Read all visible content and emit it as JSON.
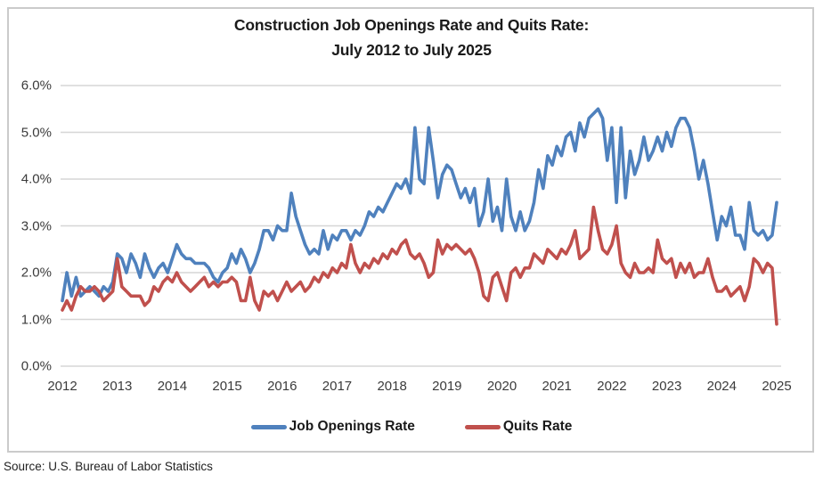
{
  "title_line1": "Construction Job Openings Rate and Quits Rate:",
  "title_line2": "July 2012 to July 2025",
  "source": "Source: U.S. Bureau of Labor Statistics",
  "legend": {
    "job_openings_label": "Job Openings Rate",
    "quits_label": "Quits Rate"
  },
  "colors": {
    "job_openings": "#4F81BD",
    "quits": "#C0504D",
    "gridline": "#d6d6d6",
    "border": "#cbcbcb"
  },
  "chart_data": {
    "type": "line",
    "title": "Construction Job Openings Rate and Quits Rate: July 2012 to July 2025",
    "x_frequency": "monthly",
    "x_start": "July 2012",
    "x_end": "July 2025",
    "x_tick_labels": [
      "2012",
      "2013",
      "2014",
      "2015",
      "2016",
      "2017",
      "2018",
      "2019",
      "2020",
      "2021",
      "2022",
      "2023",
      "2024",
      "2025"
    ],
    "y_tick_labels": [
      "0.0%",
      "1.0%",
      "2.0%",
      "3.0%",
      "4.0%",
      "5.0%",
      "6.0%"
    ],
    "ylim": [
      0,
      6
    ],
    "y_unit": "percent",
    "grid": "horizontal",
    "legend_position": "bottom",
    "series": [
      {
        "name": "Job Openings Rate",
        "color": "#4F81BD",
        "values": [
          1.4,
          2.0,
          1.5,
          1.9,
          1.5,
          1.6,
          1.7,
          1.6,
          1.5,
          1.7,
          1.6,
          1.8,
          2.4,
          2.3,
          2.0,
          2.4,
          2.2,
          1.9,
          2.4,
          2.1,
          1.9,
          2.1,
          2.2,
          2.0,
          2.3,
          2.6,
          2.4,
          2.3,
          2.3,
          2.2,
          2.2,
          2.2,
          2.1,
          1.9,
          1.8,
          2.0,
          2.1,
          2.4,
          2.2,
          2.5,
          2.3,
          2.0,
          2.2,
          2.5,
          2.9,
          2.9,
          2.7,
          3.0,
          2.9,
          2.9,
          3.7,
          3.2,
          2.9,
          2.6,
          2.4,
          2.5,
          2.4,
          2.9,
          2.5,
          2.8,
          2.7,
          2.9,
          2.9,
          2.7,
          2.9,
          2.8,
          3.0,
          3.3,
          3.2,
          3.4,
          3.3,
          3.5,
          3.7,
          3.9,
          3.8,
          4.0,
          3.7,
          5.1,
          4.0,
          3.9,
          5.1,
          4.4,
          3.6,
          4.1,
          4.3,
          4.2,
          3.9,
          3.6,
          3.8,
          3.5,
          3.8,
          3.0,
          3.3,
          4.0,
          3.1,
          3.4,
          2.9,
          4.0,
          3.2,
          2.9,
          3.3,
          2.9,
          3.1,
          3.5,
          4.2,
          3.8,
          4.5,
          4.3,
          4.7,
          4.5,
          4.9,
          5.0,
          4.6,
          5.2,
          4.9,
          5.3,
          5.4,
          5.5,
          5.3,
          4.4,
          5.1,
          3.5,
          5.1,
          3.6,
          4.6,
          4.1,
          4.4,
          4.9,
          4.4,
          4.6,
          4.9,
          4.6,
          5.0,
          4.7,
          5.1,
          5.3,
          5.3,
          5.1,
          4.6,
          4.0,
          4.4,
          3.9,
          3.3,
          2.7,
          3.2,
          3.0,
          3.4,
          2.8,
          2.8,
          2.5,
          3.5,
          2.9,
          2.8,
          2.9,
          2.7,
          2.8,
          3.5
        ]
      },
      {
        "name": "Quits Rate",
        "color": "#C0504D",
        "values": [
          1.2,
          1.4,
          1.2,
          1.5,
          1.7,
          1.6,
          1.6,
          1.7,
          1.6,
          1.4,
          1.5,
          1.6,
          2.3,
          1.7,
          1.6,
          1.5,
          1.5,
          1.5,
          1.3,
          1.4,
          1.7,
          1.6,
          1.8,
          1.9,
          1.8,
          2.0,
          1.8,
          1.7,
          1.6,
          1.7,
          1.8,
          1.9,
          1.7,
          1.8,
          1.7,
          1.8,
          1.8,
          1.9,
          1.8,
          1.4,
          1.4,
          1.9,
          1.4,
          1.2,
          1.6,
          1.5,
          1.6,
          1.4,
          1.6,
          1.8,
          1.6,
          1.7,
          1.8,
          1.6,
          1.7,
          1.9,
          1.8,
          2.0,
          1.9,
          2.1,
          2.0,
          2.2,
          2.1,
          2.6,
          2.2,
          2.0,
          2.2,
          2.1,
          2.3,
          2.2,
          2.4,
          2.3,
          2.5,
          2.4,
          2.6,
          2.7,
          2.4,
          2.3,
          2.4,
          2.2,
          1.9,
          2.0,
          2.7,
          2.4,
          2.6,
          2.5,
          2.6,
          2.5,
          2.4,
          2.5,
          2.3,
          2.0,
          1.5,
          1.4,
          1.9,
          2.0,
          1.7,
          1.4,
          2.0,
          2.1,
          1.9,
          2.1,
          2.1,
          2.4,
          2.3,
          2.2,
          2.5,
          2.4,
          2.3,
          2.5,
          2.4,
          2.6,
          2.9,
          2.3,
          2.4,
          2.5,
          3.4,
          2.9,
          2.5,
          2.4,
          2.6,
          3.0,
          2.2,
          2.0,
          1.9,
          2.2,
          2.0,
          2.0,
          2.1,
          2.0,
          2.7,
          2.3,
          2.2,
          2.3,
          1.9,
          2.2,
          2.0,
          2.2,
          1.9,
          2.0,
          2.0,
          2.3,
          1.9,
          1.6,
          1.6,
          1.7,
          1.5,
          1.6,
          1.7,
          1.4,
          1.7,
          2.3,
          2.2,
          2.0,
          2.2,
          2.1,
          0.9
        ]
      }
    ]
  }
}
